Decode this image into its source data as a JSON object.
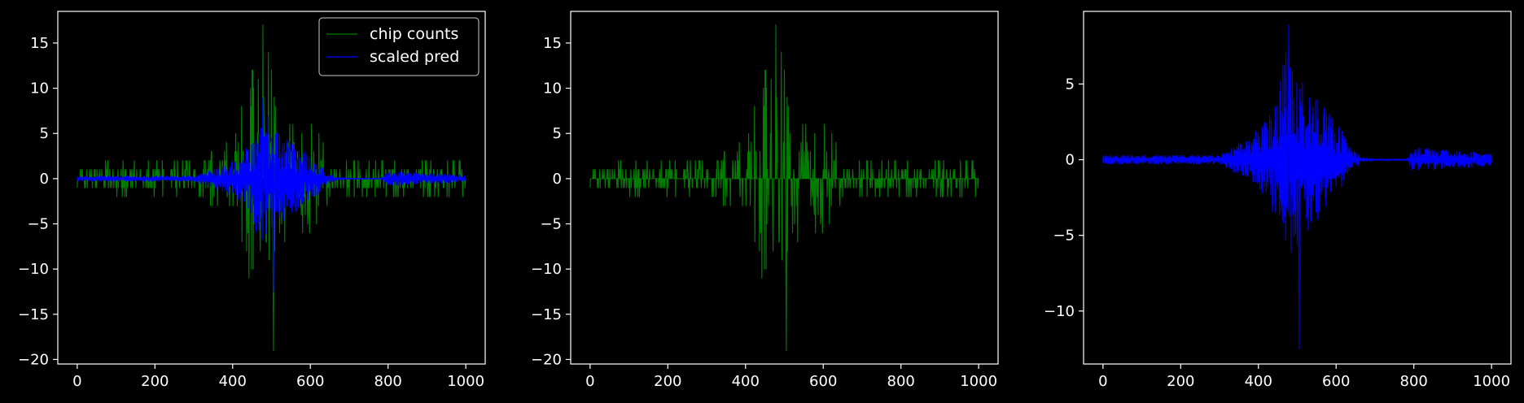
{
  "background_color": "#000000",
  "axes_color": "#ffffff",
  "chart_data": [
    {
      "type": "line",
      "title": "",
      "xlabel": "",
      "ylabel": "",
      "xlim": [
        -50,
        1050
      ],
      "ylim": [
        -20.5,
        18.5
      ],
      "xticks": [
        0,
        200,
        400,
        600,
        800,
        1000
      ],
      "yticks": [
        -20,
        -15,
        -10,
        -5,
        0,
        5,
        10,
        15
      ],
      "legend": {
        "placement": "top-right",
        "entries": [
          "chip counts",
          "scaled pred"
        ]
      },
      "series": [
        {
          "name": "chip counts",
          "color": "#008000",
          "kind": "counts",
          "points": 1001,
          "envelope": [
            [
              0,
              1
            ],
            [
              60,
              2
            ],
            [
              200,
              2
            ],
            [
              320,
              2
            ],
            [
              400,
              5
            ],
            [
              440,
              12
            ],
            [
              480,
              17
            ],
            [
              520,
              8
            ],
            [
              560,
              6
            ],
            [
              620,
              6
            ],
            [
              660,
              1
            ],
            [
              700,
              2
            ],
            [
              1000,
              2
            ]
          ],
          "extremes": [
            [
              478,
              17
            ],
            [
              505,
              -19
            ],
            [
              450,
              12
            ]
          ]
        },
        {
          "name": "scaled pred",
          "color": "#0000ff",
          "kind": "pred",
          "points": 1001,
          "envelope": [
            [
              0,
              0.3
            ],
            [
              300,
              0.3
            ],
            [
              380,
              1.5
            ],
            [
              430,
              3
            ],
            [
              480,
              8
            ],
            [
              520,
              5
            ],
            [
              600,
              2.5
            ],
            [
              650,
              0.5
            ],
            [
              700,
              0.1
            ],
            [
              780,
              0.1
            ],
            [
              800,
              0.8
            ],
            [
              1000,
              0.4
            ]
          ],
          "extremes": [
            [
              478,
              8.9
            ],
            [
              505,
              -12.5
            ]
          ]
        }
      ]
    },
    {
      "type": "line",
      "title": "",
      "xlabel": "",
      "ylabel": "",
      "xlim": [
        -50,
        1050
      ],
      "ylim": [
        -20.5,
        18.5
      ],
      "xticks": [
        0,
        200,
        400,
        600,
        800,
        1000
      ],
      "yticks": [
        -20,
        -15,
        -10,
        -5,
        0,
        5,
        10,
        15
      ],
      "series": [
        {
          "color": "#008000",
          "kind": "counts",
          "points": 1001,
          "envelope": [
            [
              0,
              1
            ],
            [
              60,
              2
            ],
            [
              200,
              2
            ],
            [
              320,
              2
            ],
            [
              400,
              5
            ],
            [
              440,
              12
            ],
            [
              480,
              17
            ],
            [
              520,
              8
            ],
            [
              560,
              6
            ],
            [
              620,
              6
            ],
            [
              660,
              1
            ],
            [
              700,
              2
            ],
            [
              1000,
              2
            ]
          ],
          "extremes": [
            [
              478,
              17
            ],
            [
              505,
              -19
            ],
            [
              450,
              12
            ]
          ]
        }
      ]
    },
    {
      "type": "line",
      "title": "",
      "xlabel": "",
      "ylabel": "",
      "xlim": [
        -50,
        1050
      ],
      "ylim": [
        -13.5,
        9.8
      ],
      "xticks": [
        0,
        200,
        400,
        600,
        800,
        1000
      ],
      "yticks": [
        -10,
        -5,
        0,
        5
      ],
      "series": [
        {
          "color": "#0000ff",
          "kind": "pred",
          "points": 1001,
          "envelope": [
            [
              0,
              0.3
            ],
            [
              300,
              0.3
            ],
            [
              380,
              1.5
            ],
            [
              430,
              3
            ],
            [
              480,
              8
            ],
            [
              520,
              5
            ],
            [
              600,
              2.5
            ],
            [
              650,
              0.5
            ],
            [
              700,
              0.1
            ],
            [
              780,
              0.1
            ],
            [
              800,
              0.8
            ],
            [
              1000,
              0.4
            ]
          ],
          "extremes": [
            [
              478,
              8.9
            ],
            [
              505,
              -12.5
            ]
          ]
        }
      ]
    }
  ]
}
